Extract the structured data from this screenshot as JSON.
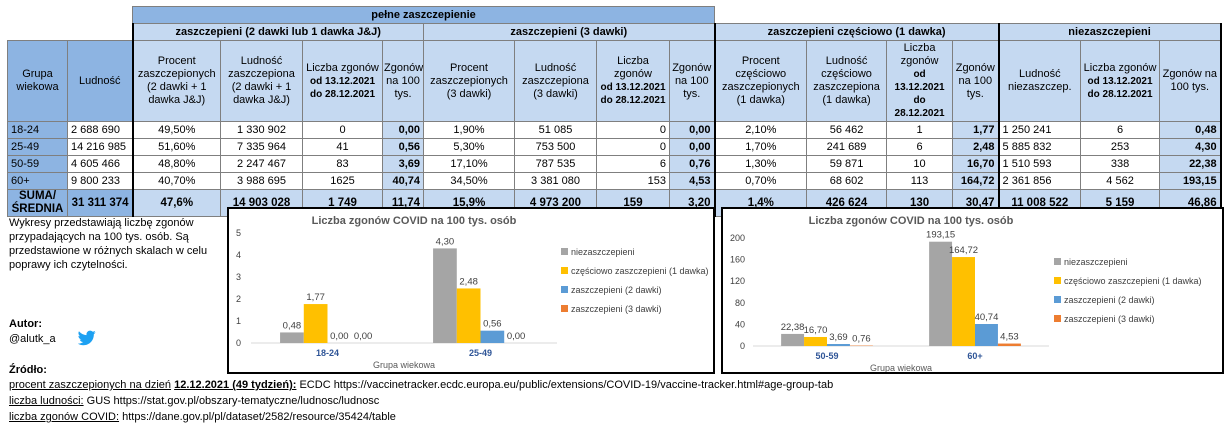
{
  "table": {
    "super_header": "pełne zaszczepienie",
    "groups": {
      "g2": "zaszczepieni (2 dawki lub 1 dawka J&J)",
      "g3": "zaszczepieni (3 dawki)",
      "g1": "zaszczepieni częściowo (1 dawka)",
      "g0": "niezaszczepieni"
    },
    "col_headers": {
      "age": "Grupa wiekowa",
      "pop": "Ludność",
      "g2_pct": "Procent zaszczepionych (2 dawki + 1 dawka J&J)",
      "g2_pop": "Ludność zaszczepiona (2 dawki + 1 dawka J&J)",
      "g2_deaths": "Liczba zgonów",
      "g2_period": "od 13.12.2021 do 28.12.2021",
      "g2_per100k": "Zgonów na 100 tys.",
      "g3_pct": "Procent zaszczepionych (3 dawki)",
      "g3_pop": "Ludność zaszczepiona (3 dawki)",
      "g3_deaths": "Liczba zgonów",
      "g3_period": "od 13.12.2021 do 28.12.2021",
      "g3_per100k": "Zgonów na 100 tys.",
      "g1_pct": "Procent częściowo zaszczepionych (1 dawka)",
      "g1_pop": "Ludność częściowo zaszczepiona (1 dawka)",
      "g1_deaths": "Liczba zgonów",
      "g1_period": "od 13.12.2021 do 28.12.2021",
      "g1_per100k": "Zgonów na 100 tys.",
      "g0_pop": "Ludność niezaszczep.",
      "g0_deaths": "Liczba zgonów",
      "g0_period": "od 13.12.2021 do 28.12.2021",
      "g0_per100k": "Zgonów na 100 tys."
    },
    "rows": [
      {
        "age": "18-24",
        "pop": "2 688 690",
        "g2_pct": "49,50%",
        "g2_pop": "1 330 902",
        "g2_deaths": "0",
        "g2_per100k": "0,00",
        "g3_pct": "1,90%",
        "g3_pop": "51 085",
        "g3_deaths": "0",
        "g3_per100k": "0,00",
        "g1_pct": "2,10%",
        "g1_pop": "56 462",
        "g1_deaths": "1",
        "g1_per100k": "1,77",
        "g0_pop": "1 250 241",
        "g0_deaths": "6",
        "g0_per100k": "0,48"
      },
      {
        "age": "25-49",
        "pop": "14 216 985",
        "g2_pct": "51,60%",
        "g2_pop": "7 335 964",
        "g2_deaths": "41",
        "g2_per100k": "0,56",
        "g3_pct": "5,30%",
        "g3_pop": "753 500",
        "g3_deaths": "0",
        "g3_per100k": "0,00",
        "g1_pct": "1,70%",
        "g1_pop": "241 689",
        "g1_deaths": "6",
        "g1_per100k": "2,48",
        "g0_pop": "5 885 832",
        "g0_deaths": "253",
        "g0_per100k": "4,30"
      },
      {
        "age": "50-59",
        "pop": "4 605 466",
        "g2_pct": "48,80%",
        "g2_pop": "2 247 467",
        "g2_deaths": "83",
        "g2_per100k": "3,69",
        "g3_pct": "17,10%",
        "g3_pop": "787 535",
        "g3_deaths": "6",
        "g3_per100k": "0,76",
        "g1_pct": "1,30%",
        "g1_pop": "59 871",
        "g1_deaths": "10",
        "g1_per100k": "16,70",
        "g0_pop": "1 510 593",
        "g0_deaths": "338",
        "g0_per100k": "22,38"
      },
      {
        "age": "60+",
        "pop": "9 800 233",
        "g2_pct": "40,70%",
        "g2_pop": "3 988 695",
        "g2_deaths": "1625",
        "g2_per100k": "40,74",
        "g3_pct": "34,50%",
        "g3_pop": "3 381 080",
        "g3_deaths": "153",
        "g3_per100k": "4,53",
        "g1_pct": "0,70%",
        "g1_pop": "68 602",
        "g1_deaths": "113",
        "g1_per100k": "164,72",
        "g0_pop": "2 361 856",
        "g0_deaths": "4 562",
        "g0_per100k": "193,15"
      }
    ],
    "summary": {
      "age": "SUMA/ ŚREDNIA",
      "pop": "31 311 374",
      "g2_pct": "47,6%",
      "g2_pop": "14 903 028",
      "g2_deaths": "1 749",
      "g2_per100k": "11,74",
      "g3_pct": "15,9%",
      "g3_pop": "4 973 200",
      "g3_deaths": "159",
      "g3_per100k": "3,20",
      "g1_pct": "1,4%",
      "g1_pop": "426 624",
      "g1_deaths": "130",
      "g1_per100k": "30,47",
      "g0_pop": "11 008 522",
      "g0_deaths": "5 159",
      "g0_per100k": "46,86"
    }
  },
  "note": "Wykresy przedstawiają liczbę zgonów przypadających na 100 tys. osób. Są przedstawione w różnych skalach w celu poprawy ich czytelności.",
  "author": {
    "label": "Autor:",
    "handle": "@alutk_a",
    "icon": "twitter-icon"
  },
  "sources": {
    "label": "Źródło:",
    "s1_underlined": "procent zaszczepionych na dzień",
    "s1_bold": "12.12.2021 (49 tydzień):",
    "s1_rest": "ECDC https://vaccinetracker.ecdc.europa.eu/public/extensions/COVID-19/vaccine-tracker.html#age-group-tab",
    "s2_underlined": "liczba ludności:",
    "s2_rest": "GUS https://stat.gov.pl/obszary-tematyczne/ludnosc/ludnosc",
    "s3_underlined": "liczba zgonów COVID:",
    "s3_rest": "https://dane.gov.pl/pl/dataset/2582/resource/35424/table"
  },
  "colors": {
    "grey": "#a5a5a5",
    "yellow": "#ffc000",
    "blue": "#5b9bd5",
    "orange": "#ed7d31"
  },
  "chart_data": [
    {
      "type": "bar",
      "title": "Liczba zgonów COVID na 100 tys. osób",
      "xlabel": "Grupa wiekowa",
      "ylabel": "",
      "ylim": [
        0,
        5
      ],
      "yticks": [
        "0",
        "1",
        "2",
        "3",
        "4",
        "5"
      ],
      "categories": [
        "18-24",
        "25-49"
      ],
      "legend": "right",
      "series": [
        {
          "name": "niezaszczepieni",
          "color": "#a5a5a5",
          "values": [
            0.48,
            4.3
          ],
          "labels": [
            "0,48",
            "4,30"
          ]
        },
        {
          "name": "częściowo zaszczepieni (1 dawka)",
          "color": "#ffc000",
          "values": [
            1.77,
            2.48
          ],
          "labels": [
            "1,77",
            "2,48"
          ]
        },
        {
          "name": "zaszczepieni (2 dawki)",
          "color": "#5b9bd5",
          "values": [
            0.0,
            0.56
          ],
          "labels": [
            "0,00",
            "0,56"
          ]
        },
        {
          "name": "zaszczepieni (3 dawki)",
          "color": "#ed7d31",
          "values": [
            0.0,
            0.0
          ],
          "labels": [
            "0,00",
            "0,00"
          ]
        }
      ]
    },
    {
      "type": "bar",
      "title": "Liczba zgonów COVID na 100 tys. osób",
      "xlabel": "Grupa wiekowa",
      "ylabel": "",
      "ylim": [
        0,
        200
      ],
      "yticks": [
        "0",
        "40",
        "80",
        "120",
        "160",
        "200"
      ],
      "categories": [
        "50-59",
        "60+"
      ],
      "legend": "right",
      "series": [
        {
          "name": "niezaszczepieni",
          "color": "#a5a5a5",
          "values": [
            22.38,
            193.15
          ],
          "labels": [
            "22,38",
            "193,15"
          ]
        },
        {
          "name": "częściowo zaszczepieni (1 dawka)",
          "color": "#ffc000",
          "values": [
            16.7,
            164.72
          ],
          "labels": [
            "16,70",
            "164,72"
          ]
        },
        {
          "name": "zaszczepieni (2 dawki)",
          "color": "#5b9bd5",
          "values": [
            3.69,
            40.74
          ],
          "labels": [
            "3,69",
            "40,74"
          ]
        },
        {
          "name": "zaszczepieni (3 dawki)",
          "color": "#ed7d31",
          "values": [
            0.76,
            4.53
          ],
          "labels": [
            "0,76",
            "4,53"
          ]
        }
      ]
    }
  ]
}
